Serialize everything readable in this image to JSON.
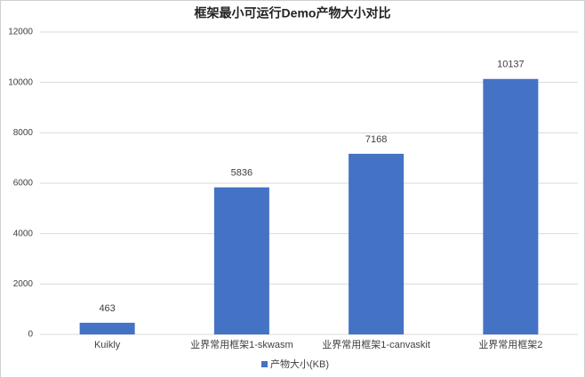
{
  "chart_data": {
    "type": "bar",
    "title": "框架最小可运行Demo产物大小对比",
    "categories": [
      "Kuikly",
      "业界常用框架1-skwasm",
      "业界常用框架1-canvaskit",
      "业界常用框架2"
    ],
    "series": [
      {
        "name": "产物大小(KB)",
        "color": "#4472c4",
        "values": [
          463,
          5836,
          7168,
          10137
        ]
      }
    ],
    "ylim": [
      0,
      12000
    ],
    "yticks": [
      0,
      2000,
      4000,
      6000,
      8000,
      10000,
      12000
    ],
    "grid": true,
    "legend": "bottom",
    "data_labels": true
  }
}
